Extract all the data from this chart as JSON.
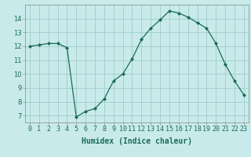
{
  "x": [
    0,
    1,
    2,
    3,
    4,
    5,
    6,
    7,
    8,
    9,
    10,
    11,
    12,
    13,
    14,
    15,
    16,
    17,
    18,
    19,
    20,
    21,
    22,
    23
  ],
  "y": [
    12.0,
    12.1,
    12.2,
    12.2,
    11.9,
    6.9,
    7.3,
    7.5,
    8.2,
    9.5,
    10.0,
    11.1,
    12.5,
    13.3,
    13.9,
    14.55,
    14.4,
    14.1,
    13.7,
    13.3,
    12.2,
    10.7,
    9.5,
    8.5
  ],
  "line_color": "#1a6b5a",
  "marker": "D",
  "marker_size": 2.0,
  "bg_color": "#c8eaea",
  "grid_color": "#a0cccc",
  "xlabel": "Humidex (Indice chaleur)",
  "xlim": [
    -0.5,
    23.5
  ],
  "ylim": [
    6.5,
    15.0
  ],
  "yticks": [
    7,
    8,
    9,
    10,
    11,
    12,
    13,
    14
  ],
  "xtick_labels": [
    "0",
    "1",
    "2",
    "3",
    "4",
    "5",
    "6",
    "7",
    "8",
    "9",
    "10",
    "11",
    "12",
    "13",
    "14",
    "15",
    "16",
    "17",
    "18",
    "19",
    "20",
    "21",
    "22",
    "23"
  ],
  "xlabel_fontsize": 7.0,
  "tick_fontsize": 6.0
}
